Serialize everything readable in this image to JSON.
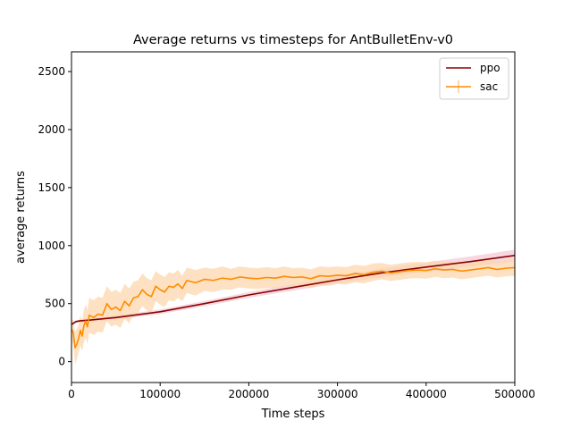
{
  "chart_data": {
    "type": "line",
    "title": "Average returns vs timesteps for AntBulletEnv-v0",
    "xlabel": "Time steps",
    "ylabel": "average returns",
    "xlim": [
      0,
      500000
    ],
    "ylim": [
      -180,
      2670
    ],
    "x_ticks": [
      0,
      100000,
      200000,
      300000,
      400000,
      500000
    ],
    "y_ticks": [
      0,
      500,
      1000,
      1500,
      2000,
      2500
    ],
    "grid": false,
    "legend_position": "top-right",
    "series": [
      {
        "name": "ppo",
        "color": "#8b0000",
        "band_color": "#f2b8c6",
        "x": [
          0,
          5000,
          10000,
          20000,
          50000,
          100000,
          150000,
          200000,
          250000,
          300000,
          350000,
          400000,
          450000,
          500000
        ],
        "y": [
          320,
          345,
          352,
          358,
          380,
          430,
          500,
          575,
          640,
          705,
          765,
          815,
          862,
          915
        ],
        "band": [
          8,
          10,
          12,
          15,
          18,
          20,
          22,
          25,
          28,
          32,
          36,
          40,
          45,
          50
        ]
      },
      {
        "name": "sac",
        "color": "#ff8c00",
        "band_color": "#fcd7ad",
        "x": [
          0,
          2000,
          4000,
          6000,
          8000,
          10000,
          12000,
          14000,
          16000,
          18000,
          20000,
          25000,
          30000,
          35000,
          40000,
          45000,
          50000,
          55000,
          60000,
          65000,
          70000,
          75000,
          80000,
          85000,
          90000,
          95000,
          100000,
          105000,
          110000,
          115000,
          120000,
          125000,
          130000,
          140000,
          150000,
          160000,
          170000,
          180000,
          190000,
          200000,
          210000,
          220000,
          230000,
          240000,
          250000,
          260000,
          270000,
          280000,
          290000,
          300000,
          310000,
          320000,
          330000,
          340000,
          350000,
          360000,
          370000,
          380000,
          390000,
          400000,
          410000,
          420000,
          430000,
          440000,
          450000,
          460000,
          470000,
          480000,
          490000,
          500000
        ],
        "y": [
          280,
          250,
          120,
          150,
          200,
          270,
          220,
          310,
          350,
          300,
          400,
          380,
          410,
          400,
          500,
          450,
          470,
          440,
          520,
          480,
          550,
          560,
          620,
          580,
          560,
          650,
          620,
          600,
          650,
          640,
          670,
          630,
          700,
          680,
          710,
          700,
          720,
          710,
          730,
          720,
          715,
          725,
          720,
          735,
          725,
          730,
          715,
          740,
          735,
          745,
          740,
          760,
          750,
          770,
          780,
          765,
          775,
          785,
          790,
          785,
          800,
          790,
          795,
          780,
          790,
          800,
          810,
          795,
          805,
          810
        ],
        "band": [
          80,
          110,
          140,
          130,
          120,
          130,
          130,
          140,
          140,
          150,
          150,
          150,
          150,
          150,
          150,
          150,
          150,
          150,
          150,
          150,
          140,
          140,
          140,
          140,
          140,
          130,
          130,
          130,
          120,
          120,
          120,
          110,
          110,
          110,
          100,
          100,
          100,
          90,
          90,
          90,
          90,
          90,
          85,
          85,
          80,
          80,
          80,
          80,
          80,
          75,
          75,
          75,
          75,
          75,
          70,
          70,
          70,
          70,
          70,
          70,
          70,
          70,
          70,
          70,
          70,
          70,
          70,
          70,
          70,
          70
        ]
      }
    ]
  }
}
